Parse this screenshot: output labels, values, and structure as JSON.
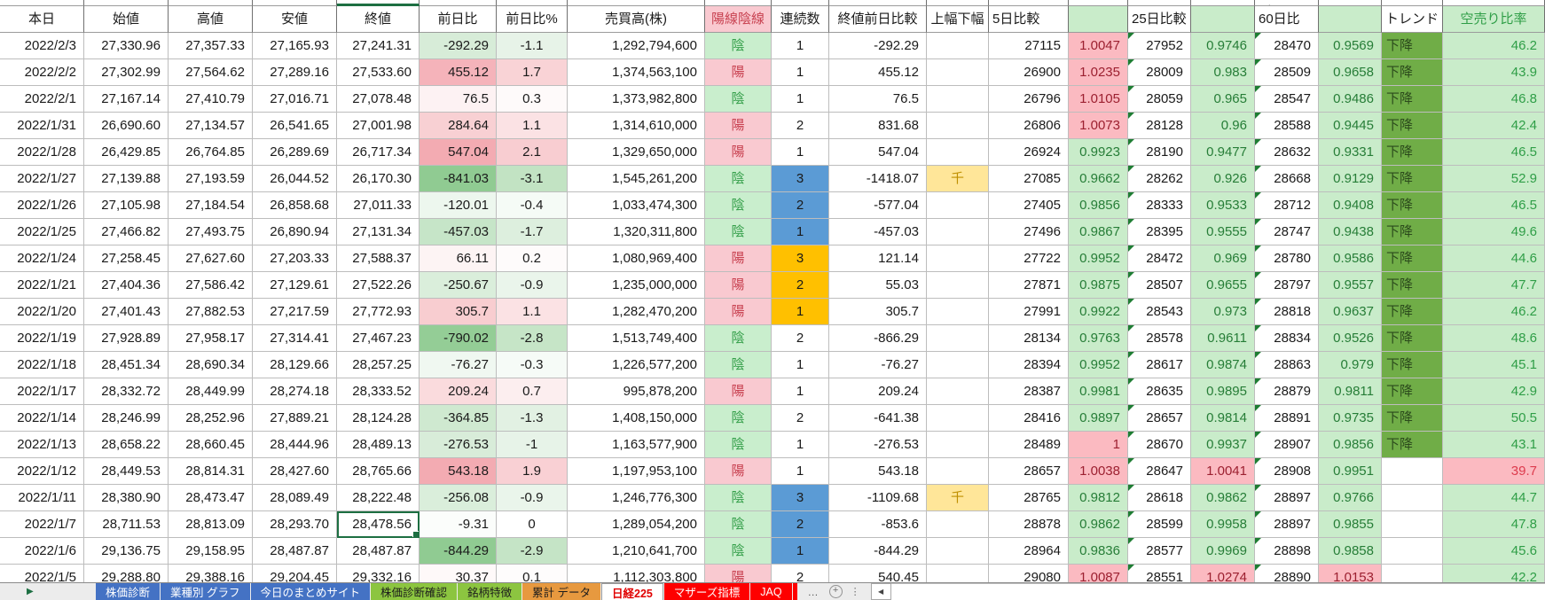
{
  "spreadsheet": {
    "headers": {
      "date": "本日",
      "open": "始値",
      "high": "高値",
      "low": "安値",
      "close": "終値",
      "chg": "前日比",
      "chg_pct": "前日比%",
      "volume": "売買高(株)",
      "candle": "陽線陰線",
      "streak": "連続数",
      "close_comp": "終値前日比較",
      "range": "上幅下幅",
      "d5": "5日比較",
      "d5r": "",
      "d25": "25日比較",
      "d25r": "",
      "d60": "60日比",
      "d60r": "",
      "trend": "トレンド",
      "short": "空売り比率"
    },
    "top_edge_fragment": "ℓ",
    "selected": {
      "row_date": "2022/1/7",
      "column": "close",
      "value": "28,478.56"
    },
    "rows": [
      {
        "date": "2022/2/3",
        "open": "27,330.96",
        "high": "27,357.33",
        "low": "27,165.93",
        "close": "27,241.31",
        "chg": "-292.29",
        "chg_bg": "#d7ecd8",
        "chg_pct": "-1.1",
        "chg_pct_bg": "#e7f3e8",
        "volume": "1,292,794,600",
        "candle": "陰",
        "streak": "1",
        "streak_bg": "none",
        "close_comp": "-292.29",
        "range": "",
        "d5": "27115",
        "d5r": "1.0047",
        "d5r_state": "up",
        "d25": "27952",
        "d25r": "0.9746",
        "d25r_state": "down",
        "d60": "28470",
        "d60r": "0.9569",
        "d60r_state": "down",
        "trend": "下降",
        "short": "46.2",
        "short_state": "normal"
      },
      {
        "date": "2022/2/2",
        "open": "27,302.99",
        "high": "27,564.62",
        "low": "27,289.16",
        "close": "27,533.60",
        "chg": "455.12",
        "chg_bg": "#f5b3ba",
        "chg_pct": "1.7",
        "chg_pct_bg": "#f9d3d6",
        "volume": "1,374,563,100",
        "candle": "陽",
        "streak": "1",
        "streak_bg": "none",
        "close_comp": "455.12",
        "range": "",
        "d5": "26900",
        "d5r": "1.0235",
        "d5r_state": "up",
        "d25": "28009",
        "d25r": "0.983",
        "d25r_state": "down",
        "d60": "28509",
        "d60r": "0.9658",
        "d60r_state": "down",
        "trend": "下降",
        "short": "43.9",
        "short_state": "normal"
      },
      {
        "date": "2022/2/1",
        "open": "27,167.14",
        "high": "27,410.79",
        "low": "27,016.71",
        "close": "27,078.48",
        "chg": "76.5",
        "chg_bg": "#fdf2f3",
        "chg_pct": "0.3",
        "chg_pct_bg": "#fefafa",
        "volume": "1,373,982,800",
        "candle": "陰",
        "streak": "1",
        "streak_bg": "none",
        "close_comp": "76.5",
        "range": "",
        "d5": "26796",
        "d5r": "1.0105",
        "d5r_state": "up",
        "d25": "28059",
        "d25r": "0.965",
        "d25r_state": "down",
        "d60": "28547",
        "d60r": "0.9486",
        "d60r_state": "down",
        "trend": "下降",
        "short": "46.8",
        "short_state": "normal"
      },
      {
        "date": "2022/1/31",
        "open": "26,690.60",
        "high": "27,134.57",
        "low": "26,541.65",
        "close": "27,001.98",
        "chg": "284.64",
        "chg_bg": "#f8d0d3",
        "chg_pct": "1.1",
        "chg_pct_bg": "#fbe2e4",
        "volume": "1,314,610,000",
        "candle": "陽",
        "streak": "2",
        "streak_bg": "none",
        "close_comp": "831.68",
        "range": "",
        "d5": "26806",
        "d5r": "1.0073",
        "d5r_state": "up",
        "d25": "28128",
        "d25r": "0.96",
        "d25r_state": "down",
        "d60": "28588",
        "d60r": "0.9445",
        "d60r_state": "down",
        "trend": "下降",
        "short": "42.4",
        "short_state": "normal"
      },
      {
        "date": "2022/1/28",
        "open": "26,429.85",
        "high": "26,764.85",
        "low": "26,289.69",
        "close": "26,717.34",
        "chg": "547.04",
        "chg_bg": "#f3abb2",
        "chg_pct": "2.1",
        "chg_pct_bg": "#f8cdd1",
        "volume": "1,329,650,000",
        "candle": "陽",
        "streak": "1",
        "streak_bg": "none",
        "close_comp": "547.04",
        "range": "",
        "d5": "26924",
        "d5r": "0.9923",
        "d5r_state": "down",
        "d25": "28190",
        "d25r": "0.9477",
        "d25r_state": "down",
        "d60": "28632",
        "d60r": "0.9331",
        "d60r_state": "down",
        "trend": "下降",
        "short": "46.5",
        "short_state": "normal"
      },
      {
        "date": "2022/1/27",
        "open": "27,139.88",
        "high": "27,193.59",
        "low": "26,044.52",
        "close": "26,170.30",
        "chg": "-841.03",
        "chg_bg": "#90cb92",
        "chg_pct": "-3.1",
        "chg_pct_bg": "#c2e3c3",
        "volume": "1,545,261,200",
        "candle": "陰",
        "streak": "3",
        "streak_bg": "blue",
        "close_comp": "-1418.07",
        "range": "千",
        "d5": "27085",
        "d5r": "0.9662",
        "d5r_state": "down",
        "d25": "28262",
        "d25r": "0.926",
        "d25r_state": "down",
        "d60": "28668",
        "d60r": "0.9129",
        "d60r_state": "down",
        "trend": "下降",
        "short": "52.9",
        "short_state": "normal"
      },
      {
        "date": "2022/1/26",
        "open": "27,105.98",
        "high": "27,184.54",
        "low": "26,858.68",
        "close": "27,011.33",
        "chg": "-120.01",
        "chg_bg": "#edf7ee",
        "chg_pct": "-0.4",
        "chg_pct_bg": "#f5fbf6",
        "volume": "1,033,474,300",
        "candle": "陰",
        "streak": "2",
        "streak_bg": "blue",
        "close_comp": "-577.04",
        "range": "",
        "d5": "27405",
        "d5r": "0.9856",
        "d5r_state": "down",
        "d25": "28333",
        "d25r": "0.9533",
        "d25r_state": "down",
        "d60": "28712",
        "d60r": "0.9408",
        "d60r_state": "down",
        "trend": "下降",
        "short": "46.5",
        "short_state": "normal"
      },
      {
        "date": "2022/1/25",
        "open": "27,466.82",
        "high": "27,493.75",
        "low": "26,890.94",
        "close": "27,131.34",
        "chg": "-457.03",
        "chg_bg": "#c6e5c8",
        "chg_pct": "-1.7",
        "chg_pct_bg": "#ddefde",
        "volume": "1,320,311,800",
        "candle": "陰",
        "streak": "1",
        "streak_bg": "blue",
        "close_comp": "-457.03",
        "range": "",
        "d5": "27496",
        "d5r": "0.9867",
        "d5r_state": "down",
        "d25": "28395",
        "d25r": "0.9555",
        "d25r_state": "down",
        "d60": "28747",
        "d60r": "0.9438",
        "d60r_state": "down",
        "trend": "下降",
        "short": "49.6",
        "short_state": "normal"
      },
      {
        "date": "2022/1/24",
        "open": "27,258.45",
        "high": "27,627.60",
        "low": "27,203.33",
        "close": "27,588.37",
        "chg": "66.11",
        "chg_bg": "#fdf4f4",
        "chg_pct": "0.2",
        "chg_pct_bg": "#fefbfb",
        "volume": "1,080,969,400",
        "candle": "陽",
        "streak": "3",
        "streak_bg": "orange",
        "close_comp": "121.14",
        "range": "",
        "d5": "27722",
        "d5r": "0.9952",
        "d5r_state": "down",
        "d25": "28472",
        "d25r": "0.969",
        "d25r_state": "down",
        "d60": "28780",
        "d60r": "0.9586",
        "d60r_state": "down",
        "trend": "下降",
        "short": "44.6",
        "short_state": "normal"
      },
      {
        "date": "2022/1/21",
        "open": "27,404.36",
        "high": "27,586.42",
        "low": "27,129.61",
        "close": "27,522.26",
        "chg": "-250.67",
        "chg_bg": "#daeedb",
        "chg_pct": "-0.9",
        "chg_pct_bg": "#eaf5eb",
        "volume": "1,235,000,000",
        "candle": "陽",
        "streak": "2",
        "streak_bg": "orange",
        "close_comp": "55.03",
        "range": "",
        "d5": "27871",
        "d5r": "0.9875",
        "d5r_state": "down",
        "d25": "28507",
        "d25r": "0.9655",
        "d25r_state": "down",
        "d60": "28797",
        "d60r": "0.9557",
        "d60r_state": "down",
        "trend": "下降",
        "short": "47.7",
        "short_state": "normal"
      },
      {
        "date": "2022/1/20",
        "open": "27,401.43",
        "high": "27,882.53",
        "low": "27,217.59",
        "close": "27,772.93",
        "chg": "305.7",
        "chg_bg": "#f8cdd0",
        "chg_pct": "1.1",
        "chg_pct_bg": "#fbe2e4",
        "volume": "1,282,470,200",
        "candle": "陽",
        "streak": "1",
        "streak_bg": "orange",
        "close_comp": "305.7",
        "range": "",
        "d5": "27991",
        "d5r": "0.9922",
        "d5r_state": "down",
        "d25": "28543",
        "d25r": "0.973",
        "d25r_state": "down",
        "d60": "28818",
        "d60r": "0.9637",
        "d60r_state": "down",
        "trend": "下降",
        "short": "46.2",
        "short_state": "normal"
      },
      {
        "date": "2022/1/19",
        "open": "27,928.89",
        "high": "27,958.17",
        "low": "27,314.41",
        "close": "27,467.23",
        "chg": "-790.02",
        "chg_bg": "#94cd96",
        "chg_pct": "-2.8",
        "chg_pct_bg": "#c6e5c7",
        "volume": "1,513,749,400",
        "candle": "陰",
        "streak": "2",
        "streak_bg": "none",
        "close_comp": "-866.29",
        "range": "",
        "d5": "28134",
        "d5r": "0.9763",
        "d5r_state": "down",
        "d25": "28578",
        "d25r": "0.9611",
        "d25r_state": "down",
        "d60": "28834",
        "d60r": "0.9526",
        "d60r_state": "down",
        "trend": "下降",
        "short": "48.6",
        "short_state": "normal"
      },
      {
        "date": "2022/1/18",
        "open": "28,451.34",
        "high": "28,690.34",
        "low": "28,129.66",
        "close": "28,257.25",
        "chg": "-76.27",
        "chg_bg": "#f0f8f1",
        "chg_pct": "-0.3",
        "chg_pct_bg": "#f6fbf7",
        "volume": "1,226,577,200",
        "candle": "陰",
        "streak": "1",
        "streak_bg": "none",
        "close_comp": "-76.27",
        "range": "",
        "d5": "28394",
        "d5r": "0.9952",
        "d5r_state": "down",
        "d25": "28617",
        "d25r": "0.9874",
        "d25r_state": "down",
        "d60": "28863",
        "d60r": "0.979",
        "d60r_state": "down",
        "trend": "下降",
        "short": "45.1",
        "short_state": "normal"
      },
      {
        "date": "2022/1/17",
        "open": "28,332.72",
        "high": "28,449.99",
        "low": "28,274.18",
        "close": "28,333.52",
        "chg": "209.24",
        "chg_bg": "#fadbdd",
        "chg_pct": "0.7",
        "chg_pct_bg": "#fceeef",
        "volume": "995,878,200",
        "candle": "陽",
        "streak": "1",
        "streak_bg": "none",
        "close_comp": "209.24",
        "range": "",
        "d5": "28387",
        "d5r": "0.9981",
        "d5r_state": "down",
        "d25": "28635",
        "d25r": "0.9895",
        "d25r_state": "down",
        "d60": "28879",
        "d60r": "0.9811",
        "d60r_state": "down",
        "trend": "下降",
        "short": "42.9",
        "short_state": "normal"
      },
      {
        "date": "2022/1/14",
        "open": "28,246.99",
        "high": "28,252.96",
        "low": "27,889.21",
        "close": "28,124.28",
        "chg": "-364.85",
        "chg_bg": "#cfe9d0",
        "chg_pct": "-1.3",
        "chg_pct_bg": "#e2f1e3",
        "volume": "1,408,150,000",
        "candle": "陰",
        "streak": "2",
        "streak_bg": "none",
        "close_comp": "-641.38",
        "range": "",
        "d5": "28416",
        "d5r": "0.9897",
        "d5r_state": "down",
        "d25": "28657",
        "d25r": "0.9814",
        "d25r_state": "down",
        "d60": "28891",
        "d60r": "0.9735",
        "d60r_state": "down",
        "trend": "下降",
        "short": "50.5",
        "short_state": "normal"
      },
      {
        "date": "2022/1/13",
        "open": "28,658.22",
        "high": "28,660.45",
        "low": "28,444.96",
        "close": "28,489.13",
        "chg": "-276.53",
        "chg_bg": "#d8ecd9",
        "chg_pct": "-1",
        "chg_pct_bg": "#e7f3e8",
        "volume": "1,163,577,900",
        "candle": "陰",
        "streak": "1",
        "streak_bg": "none",
        "close_comp": "-276.53",
        "range": "",
        "d5": "28489",
        "d5r": "1",
        "d5r_state": "up",
        "d25": "28670",
        "d25r": "0.9937",
        "d25r_state": "down",
        "d60": "28907",
        "d60r": "0.9856",
        "d60r_state": "down",
        "trend": "下降",
        "short": "43.1",
        "short_state": "normal"
      },
      {
        "date": "2022/1/12",
        "open": "28,449.53",
        "high": "28,814.31",
        "low": "28,427.60",
        "close": "28,765.66",
        "chg": "543.18",
        "chg_bg": "#f3abb2",
        "chg_pct": "1.9",
        "chg_pct_bg": "#f9d0d4",
        "volume": "1,197,953,100",
        "candle": "陽",
        "streak": "1",
        "streak_bg": "none",
        "close_comp": "543.18",
        "range": "",
        "d5": "28657",
        "d5r": "1.0038",
        "d5r_state": "up",
        "d25": "28647",
        "d25r": "1.0041",
        "d25r_state": "up",
        "d60": "28908",
        "d60r": "0.9951",
        "d60r_state": "down",
        "trend": "",
        "short": "39.7",
        "short_state": "alert"
      },
      {
        "date": "2022/1/11",
        "open": "28,380.90",
        "high": "28,473.47",
        "low": "28,089.49",
        "close": "28,222.48",
        "chg": "-256.08",
        "chg_bg": "#daeedb",
        "chg_pct": "-0.9",
        "chg_pct_bg": "#eaf5eb",
        "volume": "1,246,776,300",
        "candle": "陰",
        "streak": "3",
        "streak_bg": "blue",
        "close_comp": "-1109.68",
        "range": "千",
        "d5": "28765",
        "d5r": "0.9812",
        "d5r_state": "down",
        "d25": "28618",
        "d25r": "0.9862",
        "d25r_state": "down",
        "d60": "28897",
        "d60r": "0.9766",
        "d60r_state": "down",
        "trend": "",
        "short": "44.7",
        "short_state": "normal"
      },
      {
        "date": "2022/1/7",
        "open": "28,711.53",
        "high": "28,813.09",
        "low": "28,293.70",
        "close": "28,478.56",
        "chg": "-9.31",
        "chg_bg": "#fbfdfb",
        "chg_pct": "0",
        "chg_pct_bg": "#ffffff",
        "volume": "1,289,054,200",
        "candle": "陰",
        "streak": "2",
        "streak_bg": "blue",
        "close_comp": "-853.6",
        "range": "",
        "d5": "28878",
        "d5r": "0.9862",
        "d5r_state": "down",
        "d25": "28599",
        "d25r": "0.9958",
        "d25r_state": "down",
        "d60": "28897",
        "d60r": "0.9855",
        "d60r_state": "down",
        "trend": "",
        "short": "47.8",
        "short_state": "normal"
      },
      {
        "date": "2022/1/6",
        "open": "29,136.75",
        "high": "29,158.95",
        "low": "28,487.87",
        "close": "28,487.87",
        "chg": "-844.29",
        "chg_bg": "#90cb92",
        "chg_pct": "-2.9",
        "chg_pct_bg": "#c5e4c6",
        "volume": "1,210,641,700",
        "candle": "陰",
        "streak": "1",
        "streak_bg": "blue",
        "close_comp": "-844.29",
        "range": "",
        "d5": "28964",
        "d5r": "0.9836",
        "d5r_state": "down",
        "d25": "28577",
        "d25r": "0.9969",
        "d25r_state": "down",
        "d60": "28898",
        "d60r": "0.9858",
        "d60r_state": "down",
        "trend": "",
        "short": "45.6",
        "short_state": "normal"
      },
      {
        "date": "2022/1/5",
        "open": "29,288.80",
        "high": "29,388.16",
        "low": "29,204.45",
        "close": "29,332.16",
        "chg": "30.37",
        "chg_bg": "#fef9f9",
        "chg_pct": "0.1",
        "chg_pct_bg": "#fefcfc",
        "volume": "1,112,303,800",
        "candle": "陽",
        "streak": "2",
        "streak_bg": "none",
        "close_comp": "540.45",
        "range": "",
        "d5": "29080",
        "d5r": "1.0087",
        "d5r_state": "up",
        "d25": "28551",
        "d25r": "1.0274",
        "d25r_state": "up",
        "d60": "28890",
        "d60r": "1.0153",
        "d60r_state": "up",
        "trend": "",
        "short": "42.2",
        "short_state": "normal"
      }
    ]
  },
  "sheet_tabs": {
    "nav_arrow": "▶",
    "tabs": [
      {
        "label": "株価診断",
        "color": "blue"
      },
      {
        "label": "業種別 グラフ",
        "color": "blue"
      },
      {
        "label": "今日のまとめサイト",
        "color": "blue"
      },
      {
        "label": "株価診断確認",
        "color": "green"
      },
      {
        "label": "銘柄特徴",
        "color": "green"
      },
      {
        "label": "累計 データ",
        "color": "orange"
      },
      {
        "label": "日経225",
        "color": "active"
      },
      {
        "label": "マザーズ指標",
        "color": "red"
      },
      {
        "label": "JAQ",
        "color": "red"
      }
    ],
    "overflow_ellipsis": "…",
    "add_sheet_icon": "+",
    "more_icon": "⋮",
    "scroll_left_icon": "◀"
  },
  "colors": {
    "ratio_up_bg": "#fbbac1",
    "ratio_up_text": "#9c2030",
    "ratio_down_bg": "#c9ecca",
    "ratio_down_text": "#267d37",
    "candle_bull_bg": "#f9c9d0",
    "candle_bull_text": "#c84150",
    "candle_bear_bg": "#c9eecd",
    "candle_bear_text": "#36a04b",
    "streak_blue": "#5b9bd5",
    "streak_orange": "#ffc000",
    "range_bg": "#ffe699",
    "range_text": "#bf8f00",
    "trend_bg": "#70ad47",
    "trend_text": "#2b4a1c",
    "short_bg": "#c9ecca",
    "short_text": "#2f9e47",
    "selected_border": "#1d6f42",
    "flag_triangle": "#1e7d33",
    "tab_blue": "#4472c4",
    "tab_green": "#8cc540",
    "tab_orange": "#e7993f",
    "tab_red": "#fe0000",
    "tab_active_text": "#e00000"
  }
}
